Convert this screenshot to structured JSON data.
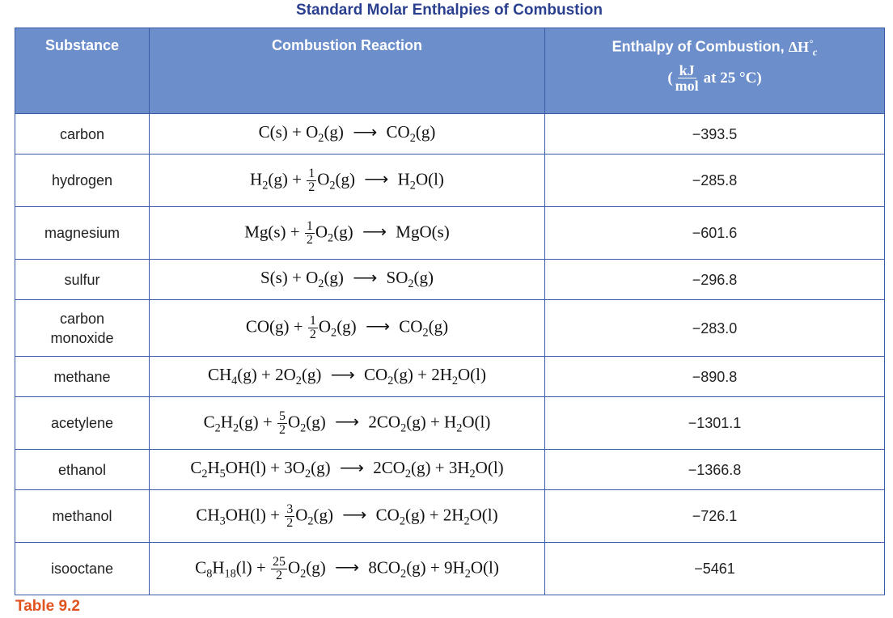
{
  "title": "Standard Molar Enthalpies of Combustion",
  "headers": {
    "substance": "Substance",
    "reaction": "Combustion Reaction",
    "enthalpy": "Enthalpy of Combustion,",
    "enthalpy_symbol": "ΔH",
    "enthalpy_symbol_sup": "°",
    "enthalpy_symbol_sub": "c",
    "unit_num": "kJ",
    "unit_den": "mol",
    "unit_suffix": "at 25 °C)",
    "unit_open": "("
  },
  "rows": [
    {
      "substance": "carbon",
      "enthalpy": "−393.5",
      "reaction": [
        "C(s) + O",
        {
          "sub": "2"
        },
        "(g) ",
        "⟶",
        " CO",
        {
          "sub": "2"
        },
        "(g)"
      ]
    },
    {
      "substance": "hydrogen",
      "enthalpy": "−285.8",
      "reaction": [
        "H",
        {
          "sub": "2"
        },
        "(g) + ",
        {
          "frac": [
            "1",
            "2"
          ]
        },
        "O",
        {
          "sub": "2"
        },
        "(g) ",
        "⟶",
        " H",
        {
          "sub": "2"
        },
        "O(l)"
      ]
    },
    {
      "substance": "magnesium",
      "enthalpy": "−601.6",
      "reaction": [
        "Mg(s) + ",
        {
          "frac": [
            "1",
            "2"
          ]
        },
        "O",
        {
          "sub": "2"
        },
        "(g) ",
        "⟶",
        " MgO(s)"
      ]
    },
    {
      "substance": "sulfur",
      "enthalpy": "−296.8",
      "reaction": [
        "S(s) + O",
        {
          "sub": "2"
        },
        "(g) ",
        "⟶",
        " SO",
        {
          "sub": "2"
        },
        "(g)"
      ]
    },
    {
      "substance": "carbon monoxide",
      "enthalpy": "−283.0",
      "reaction": [
        "CO(g) + ",
        {
          "frac": [
            "1",
            "2"
          ]
        },
        "O",
        {
          "sub": "2"
        },
        "(g) ",
        "⟶",
        " CO",
        {
          "sub": "2"
        },
        "(g)"
      ]
    },
    {
      "substance": "methane",
      "enthalpy": "−890.8",
      "reaction": [
        "CH",
        {
          "sub": "4"
        },
        "(g) + 2O",
        {
          "sub": "2"
        },
        "(g) ",
        "⟶",
        " CO",
        {
          "sub": "2"
        },
        "(g) + 2H",
        {
          "sub": "2"
        },
        "O(l)"
      ]
    },
    {
      "substance": "acetylene",
      "enthalpy": "−1301.1",
      "reaction": [
        "C",
        {
          "sub": "2"
        },
        "H",
        {
          "sub": "2"
        },
        "(g) + ",
        {
          "frac": [
            "5",
            "2"
          ]
        },
        "O",
        {
          "sub": "2"
        },
        "(g) ",
        "⟶",
        " 2CO",
        {
          "sub": "2"
        },
        "(g) + H",
        {
          "sub": "2"
        },
        "O(l)"
      ]
    },
    {
      "substance": "ethanol",
      "enthalpy": "−1366.8",
      "reaction": [
        "C",
        {
          "sub": "2"
        },
        "H",
        {
          "sub": "5"
        },
        "OH(l) + 3O",
        {
          "sub": "2"
        },
        "(g) ",
        "⟶",
        " 2CO",
        {
          "sub": "2"
        },
        "(g) + 3H",
        {
          "sub": "2"
        },
        "O(l)"
      ]
    },
    {
      "substance": "methanol",
      "enthalpy": "−726.1",
      "reaction": [
        "CH",
        {
          "sub": "3"
        },
        "OH(l) + ",
        {
          "frac": [
            "3",
            "2"
          ]
        },
        "O",
        {
          "sub": "2"
        },
        "(g) ",
        "⟶",
        " CO",
        {
          "sub": "2"
        },
        "(g) + 2H",
        {
          "sub": "2"
        },
        "O(l)"
      ]
    },
    {
      "substance": "isooctane",
      "enthalpy": "−5461",
      "reaction": [
        "C",
        {
          "sub": "8"
        },
        "H",
        {
          "sub": "18"
        },
        "(l) + ",
        {
          "frac": [
            "25",
            "2"
          ]
        },
        "O",
        {
          "sub": "2"
        },
        "(g) ",
        "⟶",
        " 8CO",
        {
          "sub": "2"
        },
        "(g) + 9H",
        {
          "sub": "2"
        },
        "O(l)"
      ]
    }
  ],
  "footer": "Table 9.2",
  "colors": {
    "header_bg": "#6c8fcc",
    "border": "#3a5ca8",
    "title": "#2b3f8f",
    "footer": "#e0521e"
  }
}
